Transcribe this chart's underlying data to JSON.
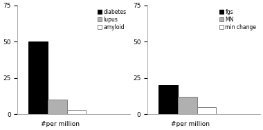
{
  "chart1": {
    "values": [
      50,
      10,
      3
    ],
    "colors": [
      "#000000",
      "#b0b0b0",
      "#ffffff"
    ],
    "edge_colors": [
      "#000000",
      "#808080",
      "#808080"
    ],
    "labels": [
      "diabetes",
      "lupus",
      "amyloid"
    ],
    "xlabel": "#per million",
    "ylim": [
      0,
      75
    ],
    "yticks": [
      0,
      25,
      50,
      75
    ]
  },
  "chart2": {
    "values": [
      20,
      12,
      5
    ],
    "colors": [
      "#000000",
      "#b0b0b0",
      "#ffffff"
    ],
    "edge_colors": [
      "#000000",
      "#808080",
      "#808080"
    ],
    "labels": [
      "fgs",
      "MN",
      "min change"
    ],
    "xlabel": "#per million",
    "ylim": [
      0,
      75
    ],
    "yticks": [
      0,
      25,
      50,
      75
    ]
  },
  "fig_bg": "#ffffff",
  "bar_width": 0.18,
  "fontsize": 6.5
}
